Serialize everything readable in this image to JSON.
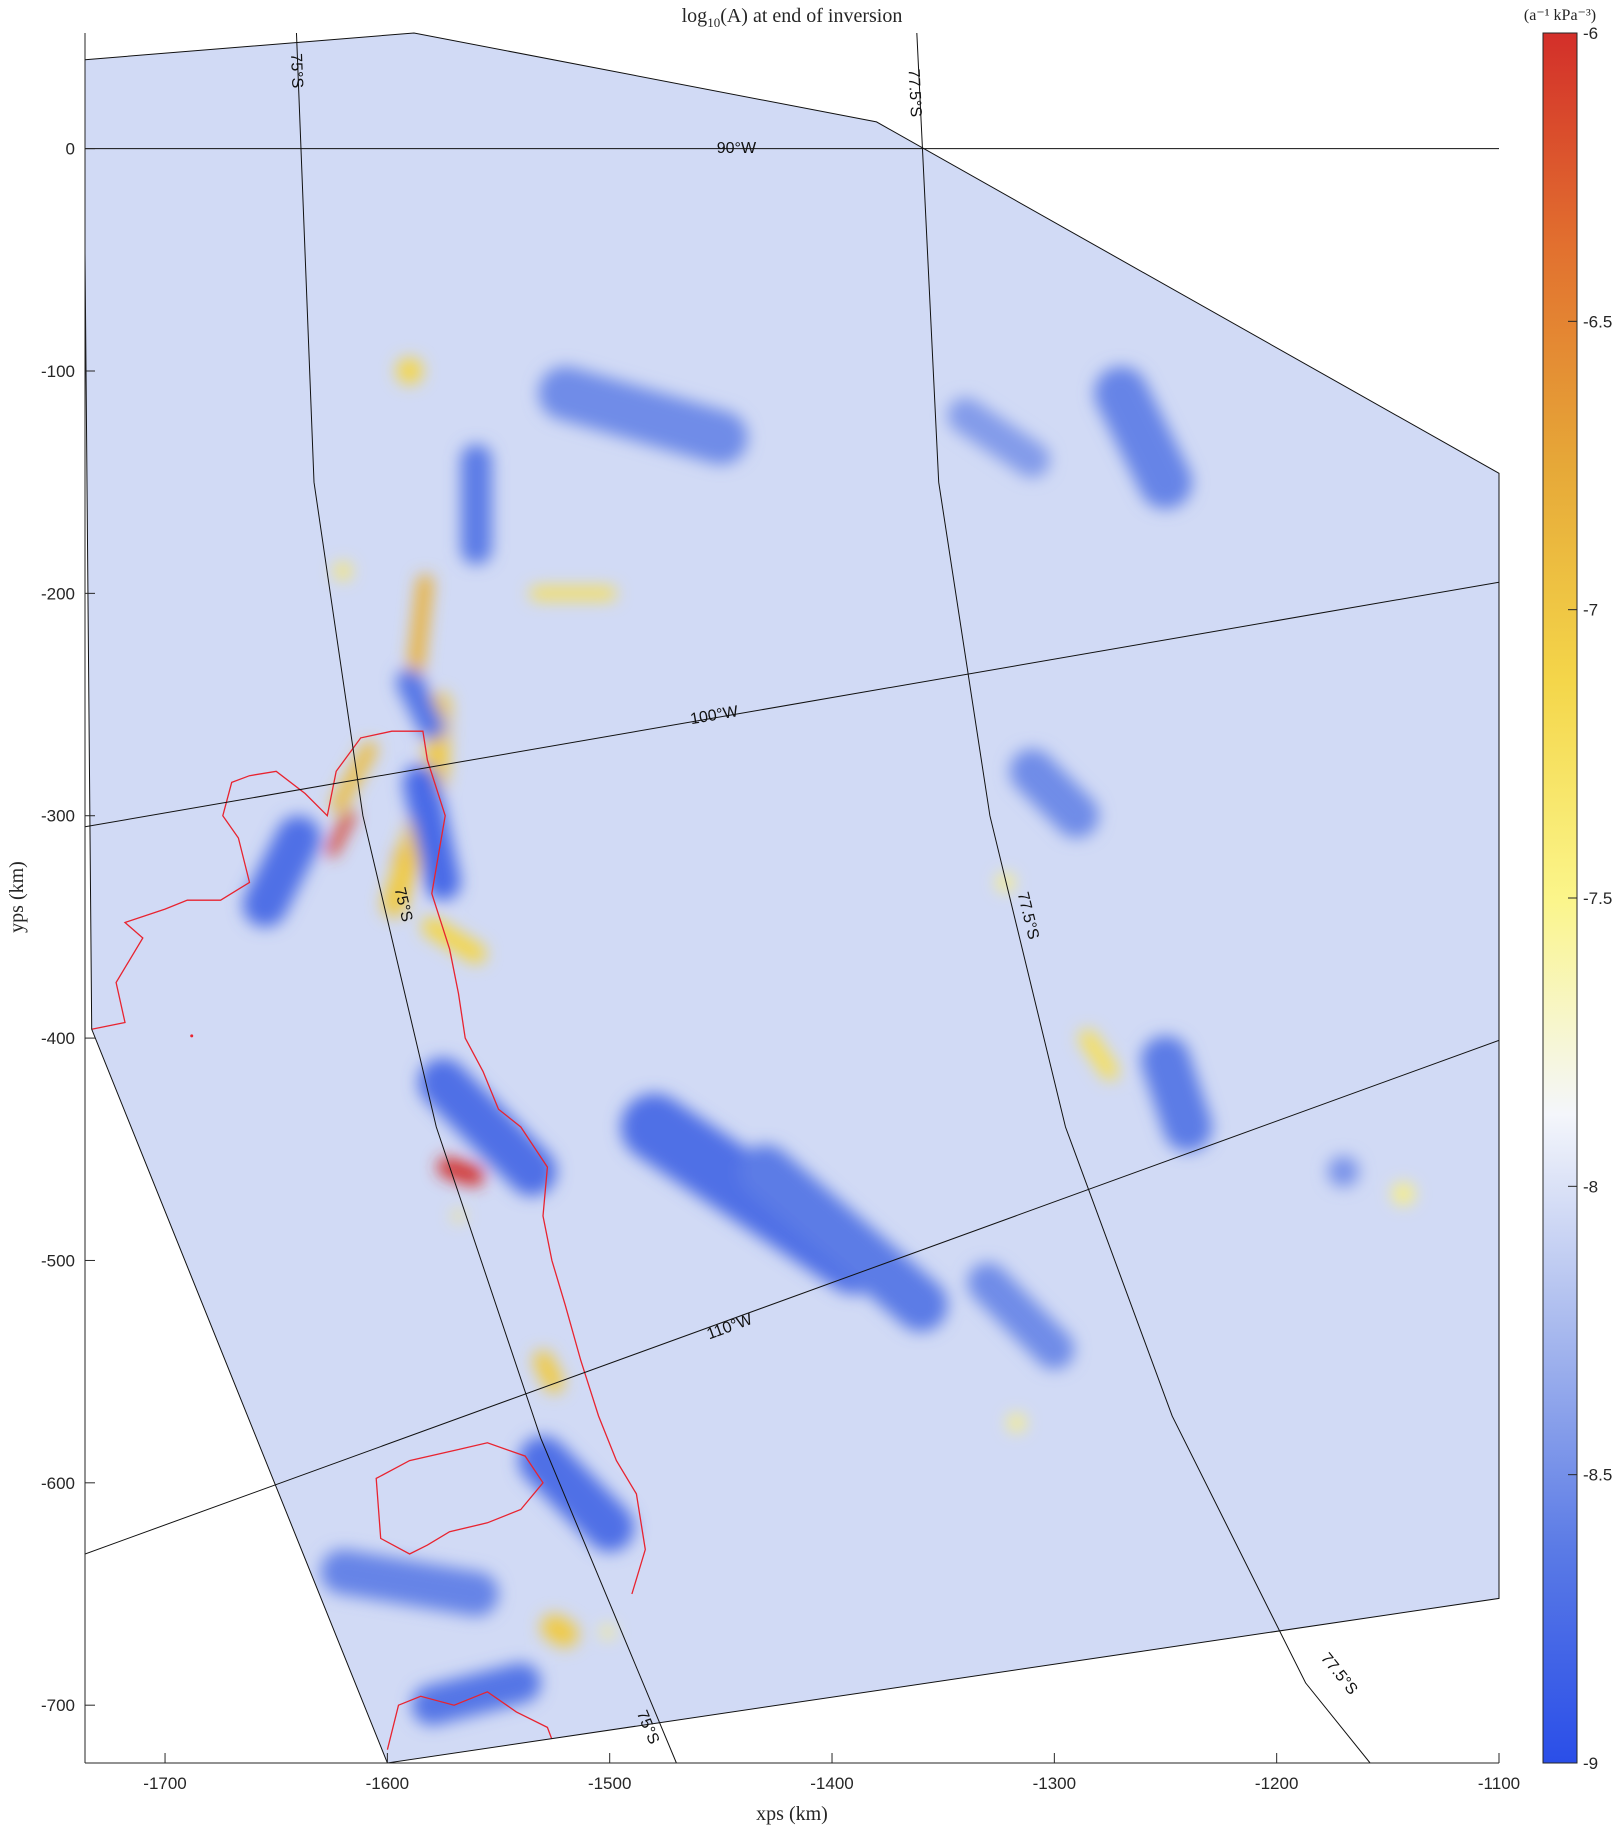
{
  "chart_data": {
    "type": "heatmap",
    "title": "log10(A) at end of inversion",
    "title_parts": {
      "prefix": "log",
      "subscript": "10",
      "suffix": "(A) at end of inversion"
    },
    "xlabel": "xps (km)",
    "ylabel": "yps (km)",
    "xlim": [
      -1736,
      -1100
    ],
    "ylim": [
      -726,
      52
    ],
    "xticks": [
      -1700,
      -1600,
      -1500,
      -1400,
      -1300,
      -1200,
      -1100
    ],
    "yticks": [
      0,
      -100,
      -200,
      -300,
      -400,
      -500,
      -600,
      -700
    ],
    "colorbar": {
      "label": "(a⁻¹ kPa⁻³)",
      "range": [
        -9,
        -6
      ],
      "ticks": [
        "-6",
        "-6.5",
        "-7",
        "-7.5",
        "-8",
        "-8.5",
        "-9"
      ],
      "colormap": [
        "#2a4ee8",
        "#5b7be6",
        "#a8b9ee",
        "#f4f6fb",
        "#fbf58a",
        "#f4d64a",
        "#e6a838",
        "#e2712f",
        "#d32f2a"
      ]
    },
    "background_value": -8.05,
    "domain_outline": [
      [
        -1736,
        40
      ],
      [
        -1588,
        52
      ],
      [
        -1380,
        12
      ],
      [
        -1100,
        -146
      ],
      [
        -1100,
        -652
      ],
      [
        -1600,
        -726
      ],
      [
        -1733,
        -396
      ],
      [
        -1736,
        -47
      ]
    ],
    "grounding_line_color": "#e8232f",
    "graticule": {
      "meridians": [
        {
          "label": "90°W",
          "points": [
            [
              -1736,
              0
            ],
            [
              -1100,
              0
            ]
          ],
          "label_at": [
            -1443,
            0
          ]
        },
        {
          "label": "100°W",
          "points": [
            [
              -1736,
              -305
            ],
            [
              -1100,
              -195
            ]
          ],
          "label_at": [
            -1453,
            -255
          ]
        },
        {
          "label": "110°W",
          "points": [
            [
              -1736,
              -632
            ],
            [
              -1100,
              -401
            ]
          ],
          "label_at": [
            -1446,
            -530
          ]
        }
      ],
      "parallels": [
        {
          "label": "75°S",
          "points": [
            [
              -1641,
              55
            ],
            [
              -1633,
              -150
            ],
            [
              -1611,
              -300
            ],
            [
              -1578,
              -440
            ],
            [
              -1531,
              -580
            ],
            [
              -1470,
              -726
            ]
          ],
          "labels_at": [
            [
              -1641,
              35
            ],
            [
              -1593,
              -340
            ],
            [
              -1483,
              -710
            ]
          ]
        },
        {
          "label": "77.5°S",
          "points": [
            [
              -1362,
              55
            ],
            [
              -1352,
              -150
            ],
            [
              -1329,
              -300
            ],
            [
              -1295,
              -440
            ],
            [
              -1247,
              -570
            ],
            [
              -1187,
              -690
            ],
            [
              -1158,
              -726
            ]
          ],
          "labels_at": [
            [
              -1363,
              25
            ],
            [
              -1312,
              -345
            ],
            [
              -1172,
              -686
            ]
          ]
        }
      ]
    },
    "features": [
      {
        "kind": "high",
        "level": 1.0,
        "points": [
          [
            -1561,
            -462
          ],
          [
            -1573,
            -458
          ]
        ],
        "width": 9
      },
      {
        "kind": "high",
        "level": 0.95,
        "points": [
          [
            -1625,
            -316
          ],
          [
            -1617,
            -300
          ]
        ],
        "width": 5
      },
      {
        "kind": "high",
        "level": 0.9,
        "points": [
          [
            -1595,
            -320
          ],
          [
            -1578,
            -285
          ]
        ],
        "width": 5
      },
      {
        "kind": "high",
        "level": 0.6,
        "points": [
          [
            -1588,
            -240
          ],
          [
            -1583,
            -195
          ]
        ],
        "width": 7
      },
      {
        "kind": "high",
        "level": 0.55,
        "points": [
          [
            -1622,
            -295
          ],
          [
            -1608,
            -270
          ]
        ],
        "width": 7
      },
      {
        "kind": "high",
        "level": 0.5,
        "points": [
          [
            -1597,
            -340
          ],
          [
            -1578,
            -280
          ],
          [
            -1577,
            -250
          ]
        ],
        "width": 11
      },
      {
        "kind": "high",
        "level": 0.5,
        "points": [
          [
            -1530,
            -545
          ],
          [
            -1525,
            -555
          ]
        ],
        "width": 9
      },
      {
        "kind": "high",
        "level": 0.5,
        "points": [
          [
            -1525,
            -665
          ],
          [
            -1520,
            -668
          ]
        ],
        "width": 12
      },
      {
        "kind": "high",
        "level": 0.45,
        "points": [
          [
            -1580,
            -350
          ],
          [
            -1560,
            -362
          ]
        ],
        "width": 9
      },
      {
        "kind": "high",
        "level": 0.45,
        "points": [
          [
            -1590,
            -100
          ]
        ],
        "width": 12
      },
      {
        "kind": "high",
        "level": 0.4,
        "points": [
          [
            -1533,
            -200
          ],
          [
            -1500,
            -200
          ]
        ],
        "width": 6
      },
      {
        "kind": "high",
        "level": 0.35,
        "points": [
          [
            -1620,
            -190
          ]
        ],
        "width": 8
      },
      {
        "kind": "high",
        "level": 0.35,
        "points": [
          [
            -1568,
            -480
          ]
        ],
        "width": 5
      },
      {
        "kind": "high",
        "level": 0.4,
        "points": [
          [
            -1285,
            -400
          ],
          [
            -1275,
            -415
          ]
        ],
        "width": 8
      },
      {
        "kind": "high",
        "level": 0.3,
        "points": [
          [
            -1322,
            -330
          ]
        ],
        "width": 8
      },
      {
        "kind": "high",
        "level": 0.3,
        "points": [
          [
            -1143,
            -470
          ]
        ],
        "width": 10
      },
      {
        "kind": "high",
        "level": 0.3,
        "points": [
          [
            -1317,
            -573
          ]
        ],
        "width": 8
      },
      {
        "kind": "high",
        "level": 0.3,
        "points": [
          [
            -1501,
            -667
          ]
        ],
        "width": 6
      },
      {
        "kind": "low",
        "level": 0.75,
        "points": [
          [
            -1585,
            -285
          ],
          [
            -1575,
            -330
          ]
        ],
        "width": 16
      },
      {
        "kind": "low",
        "level": 0.7,
        "points": [
          [
            -1575,
            -420
          ],
          [
            -1535,
            -460
          ]
        ],
        "width": 22
      },
      {
        "kind": "low",
        "level": 0.7,
        "points": [
          [
            -1640,
            -310
          ],
          [
            -1655,
            -340
          ]
        ],
        "width": 20
      },
      {
        "kind": "low",
        "level": 0.7,
        "points": [
          [
            -1480,
            -440
          ],
          [
            -1390,
            -500
          ]
        ],
        "width": 30
      },
      {
        "kind": "low",
        "level": 0.7,
        "points": [
          [
            -1530,
            -590
          ],
          [
            -1500,
            -620
          ]
        ],
        "width": 22
      },
      {
        "kind": "low",
        "level": 0.65,
        "points": [
          [
            -1590,
            -240
          ],
          [
            -1580,
            -260
          ]
        ],
        "width": 12
      },
      {
        "kind": "low",
        "level": 0.65,
        "points": [
          [
            -1580,
            -700
          ],
          [
            -1540,
            -690
          ]
        ],
        "width": 18
      },
      {
        "kind": "low",
        "level": 0.6,
        "points": [
          [
            -1560,
            -140
          ],
          [
            -1560,
            -180
          ]
        ],
        "width": 14
      },
      {
        "kind": "low",
        "level": 0.6,
        "points": [
          [
            -1430,
            -460
          ],
          [
            -1360,
            -520
          ]
        ],
        "width": 24
      },
      {
        "kind": "low",
        "level": 0.6,
        "points": [
          [
            -1250,
            -410
          ],
          [
            -1240,
            -440
          ]
        ],
        "width": 22
      },
      {
        "kind": "low",
        "level": 0.55,
        "points": [
          [
            -1620,
            -640
          ],
          [
            -1560,
            -650
          ]
        ],
        "width": 20
      },
      {
        "kind": "low",
        "level": 0.55,
        "points": [
          [
            -1270,
            -110
          ],
          [
            -1250,
            -150
          ]
        ],
        "width": 24
      },
      {
        "kind": "low",
        "level": 0.5,
        "points": [
          [
            -1520,
            -110
          ],
          [
            -1450,
            -130
          ]
        ],
        "width": 24
      },
      {
        "kind": "low",
        "level": 0.5,
        "points": [
          [
            -1310,
            -280
          ],
          [
            -1290,
            -300
          ]
        ],
        "width": 20
      },
      {
        "kind": "low",
        "level": 0.5,
        "points": [
          [
            -1330,
            -510
          ],
          [
            -1300,
            -540
          ]
        ],
        "width": 18
      },
      {
        "kind": "low",
        "level": 0.45,
        "points": [
          [
            -1170,
            -460
          ]
        ],
        "width": 14
      },
      {
        "kind": "low",
        "level": 0.4,
        "points": [
          [
            -1340,
            -120
          ],
          [
            -1310,
            -140
          ]
        ],
        "width": 16
      }
    ]
  }
}
